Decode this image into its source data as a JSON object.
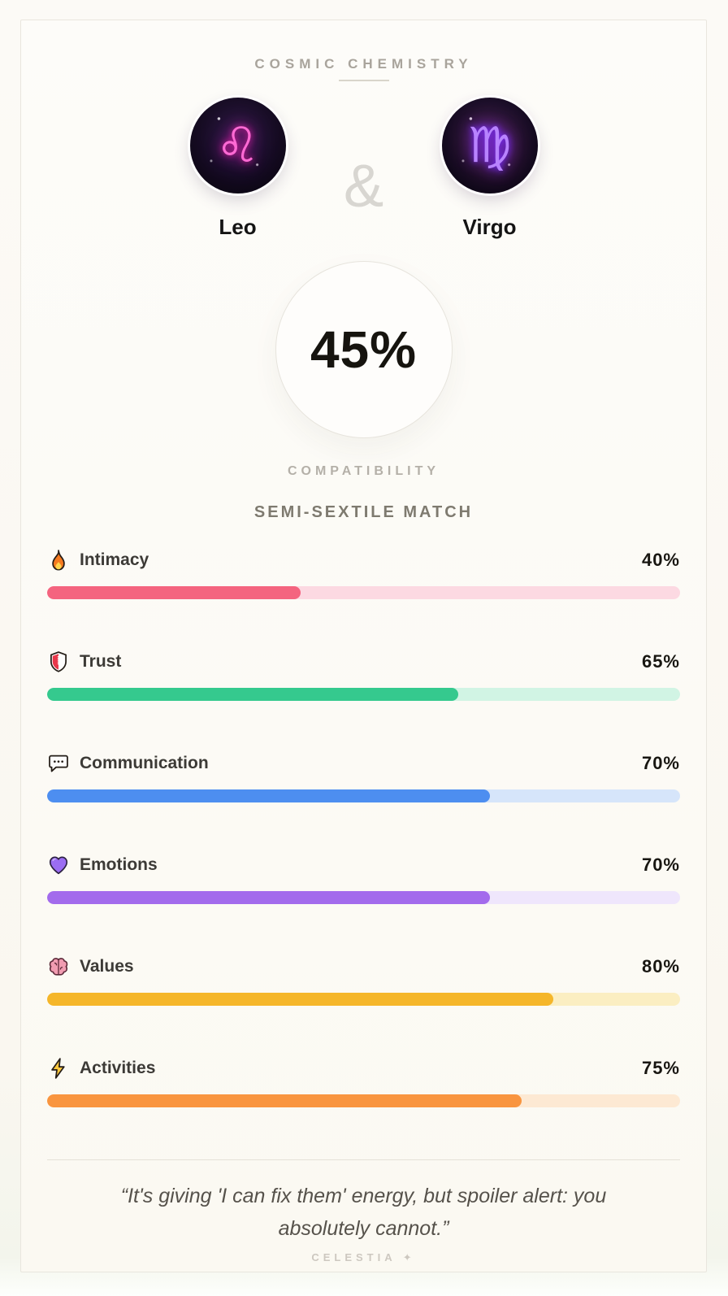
{
  "header": {
    "title": "COSMIC CHEMISTRY"
  },
  "pair": {
    "ampersand": "&",
    "left": {
      "name": "Leo",
      "symbol": "♌",
      "glyph_color": "#ff6ad4",
      "glow_color": "#e81fa8",
      "glow_color2": "#8a2bff"
    },
    "right": {
      "name": "Virgo",
      "symbol": "♍",
      "glyph_color": "#b883ff",
      "glow_color": "#7a2bff",
      "glow_color2": "#ff4fd8"
    }
  },
  "score": {
    "value": "45%",
    "label": "COMPATIBILITY"
  },
  "match_type": "SEMI-SEXTILE MATCH",
  "metrics": [
    {
      "label": "Intimacy",
      "display": "40%",
      "value": 40,
      "icon": "fire-icon",
      "fill": "#f4647f",
      "track": "#fcd9e2"
    },
    {
      "label": "Trust",
      "display": "65%",
      "value": 65,
      "icon": "shield-icon",
      "fill": "#35c98e",
      "track": "#d1f4e4"
    },
    {
      "label": "Communication",
      "display": "70%",
      "value": 70,
      "icon": "speech-balloon-icon",
      "fill": "#4d8ef0",
      "track": "#d6e5fa"
    },
    {
      "label": "Emotions",
      "display": "70%",
      "value": 70,
      "icon": "purple-heart-icon",
      "fill": "#a36bec",
      "track": "#efe6fc"
    },
    {
      "label": "Values",
      "display": "80%",
      "value": 80,
      "icon": "brain-icon",
      "fill": "#f5b62a",
      "track": "#fbeec2"
    },
    {
      "label": "Activities",
      "display": "75%",
      "value": 75,
      "icon": "lightning-icon",
      "fill": "#f9953f",
      "track": "#fde9d3"
    }
  ],
  "quote": "“It's giving 'I can fix them' energy, but spoiler alert: you absolutely cannot.”",
  "footer": {
    "brand": "CELESTIA",
    "sparkle": "✦"
  }
}
